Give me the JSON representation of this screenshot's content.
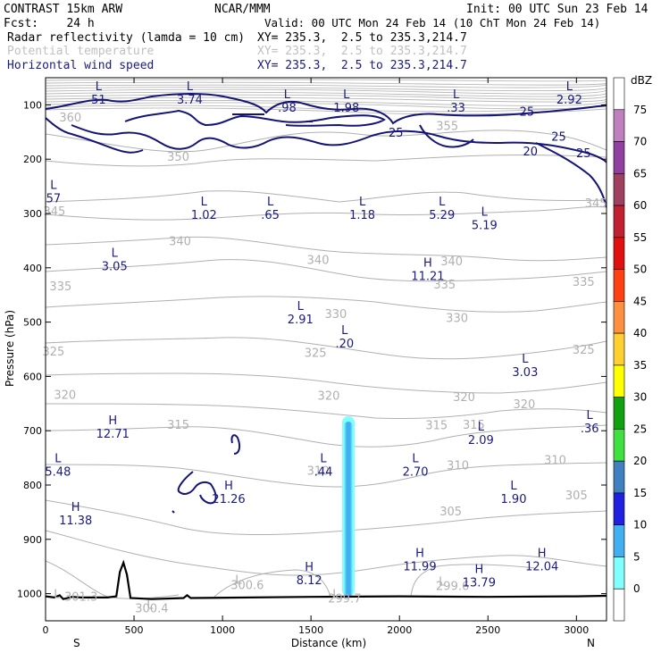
{
  "header": {
    "left": [
      "CONTRAST 15km ARW",
      "Fcst:    24 h"
    ],
    "center": "NCAR/MMM",
    "right": [
      "Init: 00 UTC Sun 23 Feb 14",
      "Valid: 00 UTC Mon 24 Feb 14 (10 ChT Mon 24 Feb 14)"
    ],
    "fields": [
      {
        "name": "Radar reflectivity (lamda = 10 cm)",
        "xy": "XY= 235.3,  2.5 to 235.3,214.7",
        "color": "#000000"
      },
      {
        "name": "Potential temperature",
        "xy": "XY= 235.3,  2.5 to 235.3,214.7",
        "color": "#c0c0c0"
      },
      {
        "name": "Horizontal wind speed",
        "xy": "XY= 235.3,  2.5 to 235.3,214.7",
        "color": "#1a1a80"
      }
    ]
  },
  "chart_data": {
    "type": "contour_cross_section",
    "xlabel": "Distance (km)",
    "ylabel": "Pressure (hPa)",
    "x_ticks": [
      0,
      500,
      1000,
      1500,
      2000,
      2500,
      3000
    ],
    "x_range": [
      0,
      3170
    ],
    "y_ticks": [
      100,
      200,
      300,
      400,
      500,
      600,
      700,
      800,
      900,
      1000
    ],
    "y_range": [
      1050,
      50
    ],
    "axis_end_labels": {
      "left": "S",
      "right": "N"
    },
    "colorbar": {
      "unit": "dBZ",
      "ticks": [
        75,
        70,
        65,
        60,
        55,
        50,
        45,
        40,
        35,
        30,
        25,
        20,
        15,
        10,
        5,
        0
      ],
      "colors": [
        "#ffffff",
        "#c080c0",
        "#9040a0",
        "#a04060",
        "#c02030",
        "#e01010",
        "#ff4010",
        "#ff9040",
        "#ffd030",
        "#ffff00",
        "#10a010",
        "#40e040",
        "#4080c0",
        "#2020e0",
        "#40b0f0",
        "#80ffff",
        "#ffffff"
      ]
    },
    "isentrope_labels": [
      {
        "x": 140,
        "p": 122,
        "text": "360"
      },
      {
        "x": 750,
        "p": 195,
        "text": "350"
      },
      {
        "x": 2270,
        "p": 138,
        "text": "355"
      },
      {
        "x": 50,
        "p": 295,
        "text": "345"
      },
      {
        "x": 3110,
        "p": 280,
        "text": "345"
      },
      {
        "x": 760,
        "p": 350,
        "text": "340"
      },
      {
        "x": 1540,
        "p": 385,
        "text": "340"
      },
      {
        "x": 2295,
        "p": 387,
        "text": "340"
      },
      {
        "x": 85,
        "p": 433,
        "text": "335"
      },
      {
        "x": 2255,
        "p": 430,
        "text": "335"
      },
      {
        "x": 3040,
        "p": 425,
        "text": "335"
      },
      {
        "x": 1640,
        "p": 484,
        "text": "330"
      },
      {
        "x": 2325,
        "p": 492,
        "text": "330"
      },
      {
        "x": 45,
        "p": 553,
        "text": "325"
      },
      {
        "x": 1525,
        "p": 556,
        "text": "325"
      },
      {
        "x": 3040,
        "p": 550,
        "text": "325"
      },
      {
        "x": 110,
        "p": 633,
        "text": "320"
      },
      {
        "x": 1600,
        "p": 635,
        "text": "320"
      },
      {
        "x": 2365,
        "p": 637,
        "text": "320"
      },
      {
        "x": 2705,
        "p": 650,
        "text": "320"
      },
      {
        "x": 750,
        "p": 688,
        "text": "315"
      },
      {
        "x": 2210,
        "p": 689,
        "text": "315"
      },
      {
        "x": 2420,
        "p": 688,
        "text": "315"
      },
      {
        "x": 1540,
        "p": 773,
        "text": "310"
      },
      {
        "x": 2330,
        "p": 763,
        "text": "310"
      },
      {
        "x": 2880,
        "p": 753,
        "text": "310"
      },
      {
        "x": 2290,
        "p": 848,
        "text": "305"
      },
      {
        "x": 3000,
        "p": 818,
        "text": "305"
      },
      {
        "x": 200,
        "p": 1005,
        "text": "301.3"
      },
      {
        "x": 1140,
        "p": 983,
        "text": "300.6"
      },
      {
        "x": 1690,
        "p": 1008,
        "text": "299.7"
      },
      {
        "x": 2300,
        "p": 985,
        "text": "299.6"
      },
      {
        "x": 600,
        "p": 1026,
        "text": "300.4"
      }
    ],
    "hl_centers": [
      {
        "x": 300,
        "p": 73,
        "type": "L",
        "value": "51",
        "group": "wind"
      },
      {
        "x": 815,
        "p": 73,
        "type": "L",
        "value": "3.74",
        "group": "wind"
      },
      {
        "x": 1365,
        "p": 88,
        "type": "L",
        "value": ".98",
        "group": "wind"
      },
      {
        "x": 1700,
        "p": 88,
        "type": "L",
        "value": "1.98",
        "group": "wind"
      },
      {
        "x": 2320,
        "p": 88,
        "type": "L",
        "value": ".33",
        "group": "wind"
      },
      {
        "x": 2960,
        "p": 73,
        "type": "L",
        "value": "2.92",
        "group": "wind"
      },
      {
        "x": 45,
        "p": 255,
        "type": "L",
        "value": "57",
        "group": "wind"
      },
      {
        "x": 895,
        "p": 285,
        "type": "L",
        "value": "1.02",
        "group": "wind"
      },
      {
        "x": 1270,
        "p": 285,
        "type": "L",
        "value": ".65",
        "group": "wind"
      },
      {
        "x": 1790,
        "p": 285,
        "type": "L",
        "value": "1.18",
        "group": "wind"
      },
      {
        "x": 2240,
        "p": 285,
        "type": "L",
        "value": "5.29",
        "group": "wind"
      },
      {
        "x": 2480,
        "p": 304,
        "type": "L",
        "value": "5.19",
        "group": "wind"
      },
      {
        "x": 390,
        "p": 380,
        "type": "L",
        "value": "3.05",
        "group": "wind"
      },
      {
        "x": 2160,
        "p": 398,
        "type": "H",
        "value": "11.21",
        "group": "wind"
      },
      {
        "x": 1440,
        "p": 478,
        "type": "L",
        "value": "2.91",
        "group": "wind"
      },
      {
        "x": 1690,
        "p": 522,
        "type": "L",
        "value": ".20",
        "group": "wind"
      },
      {
        "x": 2710,
        "p": 575,
        "type": "L",
        "value": "3.03",
        "group": "wind"
      },
      {
        "x": 3075,
        "p": 678,
        "type": "L",
        "value": ".36",
        "group": "wind"
      },
      {
        "x": 380,
        "p": 688,
        "type": "H",
        "value": "12.71",
        "group": "wind"
      },
      {
        "x": 2460,
        "p": 700,
        "type": "L",
        "value": "2.09",
        "group": "wind"
      },
      {
        "x": 70,
        "p": 758,
        "type": "L",
        "value": "5.48",
        "group": "wind"
      },
      {
        "x": 1570,
        "p": 758,
        "type": "L",
        "value": ".44",
        "group": "wind"
      },
      {
        "x": 2090,
        "p": 758,
        "type": "L",
        "value": "2.70",
        "group": "wind"
      },
      {
        "x": 1035,
        "p": 808,
        "type": "H",
        "value": "21.26",
        "group": "wind"
      },
      {
        "x": 2645,
        "p": 808,
        "type": "L",
        "value": "1.90",
        "group": "wind"
      },
      {
        "x": 170,
        "p": 848,
        "type": "H",
        "value": "11.38",
        "group": "wind"
      },
      {
        "x": 1490,
        "p": 958,
        "type": "H",
        "value": "8.12",
        "group": "wind"
      },
      {
        "x": 2115,
        "p": 932,
        "type": "H",
        "value": "11.99",
        "group": "wind"
      },
      {
        "x": 2450,
        "p": 962,
        "type": "H",
        "value": "13.79",
        "group": "wind"
      },
      {
        "x": 2805,
        "p": 932,
        "type": "H",
        "value": "12.04",
        "group": "wind"
      },
      {
        "x": 65,
        "p": 1008,
        "type": "L",
        "value": "",
        "group": "theta"
      },
      {
        "x": 1090,
        "p": 982,
        "type": "L",
        "value": "",
        "group": "theta"
      },
      {
        "x": 1640,
        "p": 1008,
        "type": "L",
        "value": "",
        "group": "theta"
      },
      {
        "x": 2240,
        "p": 985,
        "type": "L",
        "value": "",
        "group": "theta"
      },
      {
        "x": 590,
        "p": 1028,
        "type": "L",
        "value": "",
        "group": "theta"
      }
    ],
    "wind_contour_labels": [
      {
        "x": 1980,
        "p": 150,
        "text": "25"
      },
      {
        "x": 2720,
        "p": 112,
        "text": "25"
      },
      {
        "x": 2900,
        "p": 158,
        "text": "25"
      },
      {
        "x": 2740,
        "p": 185,
        "text": "20"
      },
      {
        "x": 3040,
        "p": 188,
        "text": "25"
      }
    ],
    "reflectivity_column": {
      "x": 1718,
      "p_top": 680,
      "p_bottom": 1010,
      "dbz": 10
    },
    "terrain_pressure_hPa": [
      [
        0,
        1005
      ],
      [
        50,
        1007
      ],
      [
        80,
        1003
      ],
      [
        100,
        1010
      ],
      [
        150,
        1006
      ],
      [
        200,
        1007
      ],
      [
        350,
        1007
      ],
      [
        400,
        1005
      ],
      [
        420,
        960
      ],
      [
        440,
        943
      ],
      [
        460,
        965
      ],
      [
        480,
        1008
      ],
      [
        600,
        1010
      ],
      [
        780,
        1008
      ],
      [
        800,
        1003
      ],
      [
        820,
        1008
      ],
      [
        1500,
        1006
      ],
      [
        2000,
        1005
      ],
      [
        2500,
        1006
      ],
      [
        3000,
        1005
      ],
      [
        3170,
        1004
      ]
    ]
  }
}
